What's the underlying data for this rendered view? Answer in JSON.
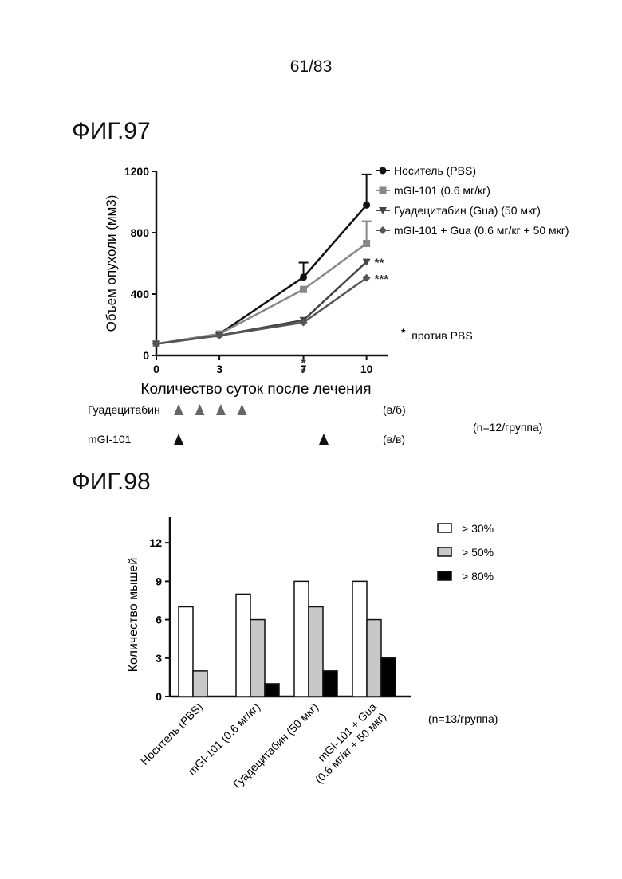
{
  "page_number": "61/83",
  "fig97": {
    "title": "ФИГ.97"
  },
  "fig98": {
    "title": "ФИГ.98"
  },
  "chart_data": [
    {
      "type": "line",
      "ylabel": "Объем опухоли (мм3)",
      "xlabel": "Количество суток после лечения",
      "x": [
        0,
        3,
        7,
        10
      ],
      "x_ticks": [
        "0",
        "3",
        "7",
        "10"
      ],
      "y_ticks": [
        "0",
        "400",
        "800",
        "1200"
      ],
      "ylim": [
        0,
        1200
      ],
      "xlim": [
        0,
        11
      ],
      "series": [
        {
          "name": "Носитель (PBS)",
          "marker": "circle",
          "color": "#111111",
          "values": [
            75,
            140,
            510,
            980
          ],
          "errors": [
            0,
            0,
            95,
            200
          ]
        },
        {
          "name": "mGI-101 (0.6 мг/кг)",
          "marker": "square",
          "color": "#888888",
          "values": [
            75,
            140,
            430,
            730
          ],
          "errors": [
            0,
            0,
            0,
            145
          ]
        },
        {
          "name": "Гуадецитабин (Gua) (50 мкг)",
          "marker": "triangle-down",
          "color": "#444444",
          "values": [
            75,
            130,
            230,
            610
          ],
          "errors": [
            0,
            0,
            0,
            0
          ]
        },
        {
          "name": "mGI-101 + Gua (0.6 мг/кг + 50 мкг)",
          "marker": "diamond",
          "color": "#555555",
          "values": [
            75,
            130,
            215,
            505
          ],
          "errors": [
            0,
            0,
            0,
            0
          ]
        }
      ],
      "legend_position": "top-right",
      "annotations": [
        {
          "text": "**",
          "x": 10,
          "y": 610
        },
        {
          "text": "***",
          "x": 10,
          "y": 505
        },
        {
          "text": "*",
          "x": 7,
          "y": 130
        },
        {
          "text": "*",
          "x": 7,
          "y": 70
        }
      ],
      "footnote": {
        "star": "*",
        "text": ", против PBS"
      },
      "dosing": [
        {
          "label": "Гуадецитабин",
          "route": "(в/б)",
          "days": [
            1,
            2,
            3,
            4
          ]
        },
        {
          "label": "mGI-101",
          "route": "(в/в)",
          "days": [
            1,
            8
          ]
        }
      ],
      "group_note": "(n=12/группа)"
    },
    {
      "type": "bar",
      "ylabel": "Количество мышей",
      "categories": [
        "Носитель (PBS)",
        "mGI-101 (0.6 мг/кг)",
        "Гуадецитабин (50 мкг)",
        "mGI-101 + Gua\n(0.6 мг/кг + 50 мкг)"
      ],
      "y_ticks": [
        "0",
        "3",
        "6",
        "9",
        "12"
      ],
      "ylim": [
        0,
        14
      ],
      "series": [
        {
          "name": "> 30%",
          "color": "#ffffff",
          "values": [
            7,
            8,
            9,
            9
          ]
        },
        {
          "name": "> 50%",
          "color": "#c8c8c8",
          "values": [
            2,
            6,
            7,
            6
          ]
        },
        {
          "name": "> 80%",
          "color": "#000000",
          "values": [
            0,
            1,
            2,
            3
          ]
        }
      ],
      "legend_position": "top-right",
      "group_note": "(n=13/группа)"
    }
  ]
}
